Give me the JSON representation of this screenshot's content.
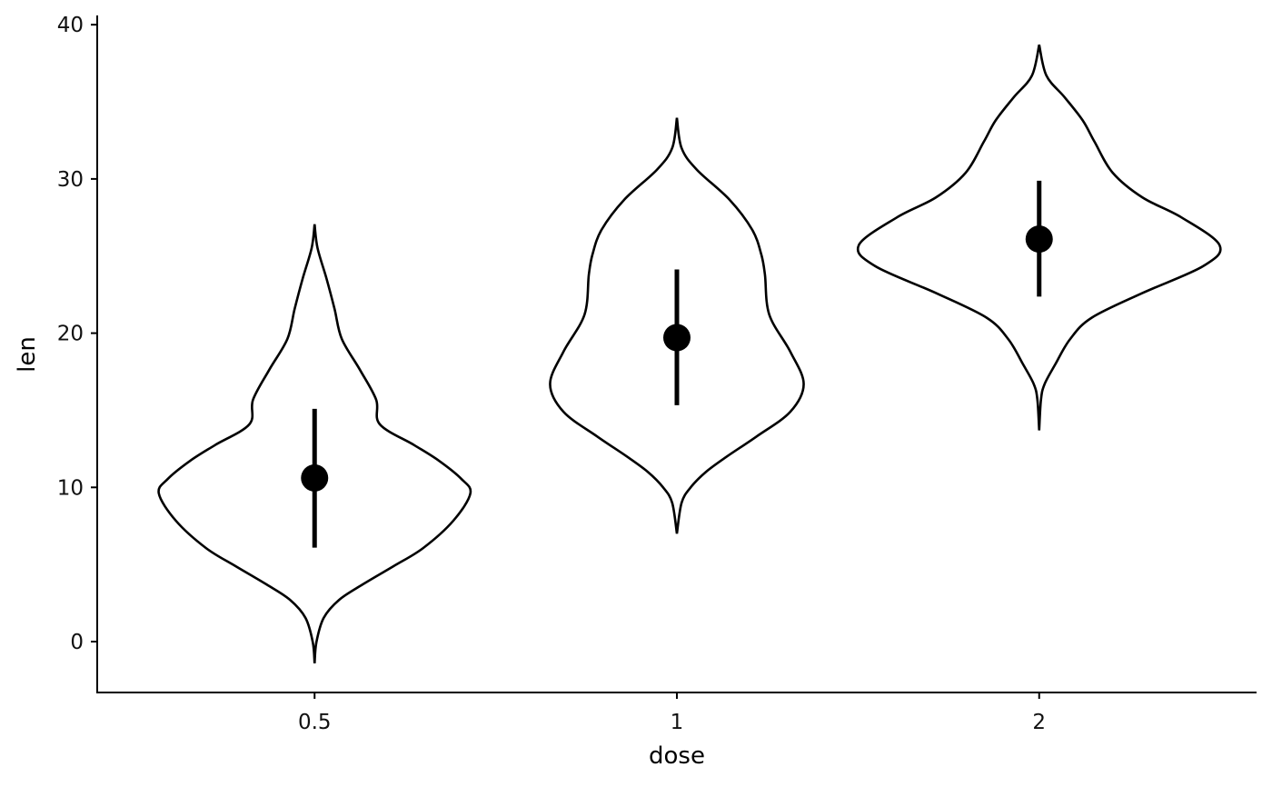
{
  "chart_data": {
    "type": "violin",
    "title": "",
    "xlabel": "dose",
    "ylabel": "len",
    "categories": [
      "0.5",
      "1",
      "2"
    ],
    "y_ticks": [
      0,
      10,
      20,
      30,
      40
    ],
    "ylim": [
      -3.3,
      40.6
    ],
    "xlim_index": [
      0.4,
      3.6
    ],
    "grid": false,
    "legend": "none",
    "colors": {
      "outline": "#000000",
      "fill": "#ffffff",
      "summary": "#000000"
    },
    "violins": [
      {
        "category": "0.5",
        "mean": 10.61,
        "sd_low": 6.09,
        "sd_high": 15.09,
        "profile_len_halfwidth": [
          [
            -1.41,
            0
          ],
          [
            -0.04,
            0.005
          ],
          [
            1.53,
            0.025
          ],
          [
            2.71,
            0.068
          ],
          [
            3.71,
            0.133
          ],
          [
            4.89,
            0.218
          ],
          [
            6.07,
            0.3
          ],
          [
            7.84,
            0.383
          ],
          [
            9.61,
            0.43
          ],
          [
            10.55,
            0.405
          ],
          [
            11.73,
            0.343
          ],
          [
            12.74,
            0.275
          ],
          [
            14.09,
            0.18
          ],
          [
            15.68,
            0.17
          ],
          [
            17.63,
            0.125
          ],
          [
            19.63,
            0.075
          ],
          [
            21.58,
            0.055
          ],
          [
            23.53,
            0.033
          ],
          [
            25.53,
            0.008
          ],
          [
            27.06,
            0
          ]
        ]
      },
      {
        "category": "1",
        "mean": 19.71,
        "sd_low": 15.33,
        "sd_high": 24.13,
        "profile_len_halfwidth": [
          [
            7.0,
            0
          ],
          [
            9.0,
            0.013
          ],
          [
            10.0,
            0.038
          ],
          [
            11.0,
            0.08
          ],
          [
            12.0,
            0.138
          ],
          [
            13.3,
            0.22
          ],
          [
            14.9,
            0.313
          ],
          [
            16.7,
            0.35
          ],
          [
            18.8,
            0.313
          ],
          [
            21.2,
            0.255
          ],
          [
            23.8,
            0.243
          ],
          [
            25.1,
            0.233
          ],
          [
            26.7,
            0.208
          ],
          [
            28.66,
            0.145
          ],
          [
            30.6,
            0.055
          ],
          [
            32.0,
            0.013
          ],
          [
            33.96,
            0
          ]
        ]
      },
      {
        "category": "2",
        "mean": 26.1,
        "sd_low": 22.37,
        "sd_high": 29.88,
        "profile_len_halfwidth": [
          [
            13.7,
            0
          ],
          [
            15.7,
            0.005
          ],
          [
            16.7,
            0.015
          ],
          [
            18.0,
            0.045
          ],
          [
            19.6,
            0.085
          ],
          [
            21.0,
            0.145
          ],
          [
            22.6,
            0.285
          ],
          [
            24.35,
            0.453
          ],
          [
            25.7,
            0.498
          ],
          [
            27.5,
            0.393
          ],
          [
            28.8,
            0.285
          ],
          [
            30.4,
            0.203
          ],
          [
            32.4,
            0.153
          ],
          [
            33.8,
            0.12
          ],
          [
            35.3,
            0.07
          ],
          [
            36.7,
            0.02
          ],
          [
            38.7,
            0
          ]
        ]
      }
    ]
  }
}
